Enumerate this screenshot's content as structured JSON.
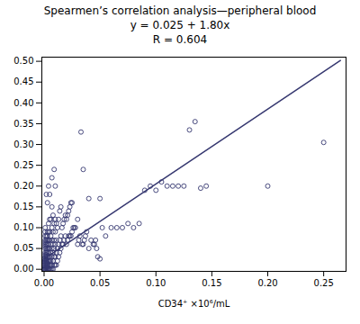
{
  "chart_data": {
    "type": "scatter",
    "title": "Spearmen’s correlation analysis—peripheral blood\ny = 0.025 + 1.80x\nR = 0.604",
    "xlabel": "CD34⁺ ×10⁶/mL",
    "xlim": [
      -0.002,
      0.27
    ],
    "ylim": [
      -0.005,
      0.51
    ],
    "xticks": [
      {
        "value": 0.0,
        "label": "0.00"
      },
      0.05,
      {
        "value": 0.1,
        "label": "0.10"
      },
      0.15,
      {
        "value": 0.2,
        "label": "0.20"
      },
      0.25
    ],
    "yticks": [
      {
        "value": 0.0,
        "label": "0.00"
      },
      0.05,
      {
        "value": 0.1,
        "label": "0.10"
      },
      0.15,
      {
        "value": 0.2,
        "label": "0.20"
      },
      0.25,
      {
        "value": 0.3,
        "label": "0.30"
      },
      0.35,
      {
        "value": 0.4,
        "label": "0.40"
      },
      0.45,
      {
        "value": 0.5,
        "label": "0.50"
      }
    ],
    "grid": false,
    "series": [
      {
        "type": "scatter",
        "color": "#363870",
        "marker": "circle",
        "x": [
          0.0,
          0.0,
          0.0,
          0.0,
          0.0,
          0.0,
          0.0,
          0.0,
          0.001,
          0.001,
          0.001,
          0.001,
          0.001,
          0.001,
          0.001,
          0.001,
          0.001,
          0.001,
          0.001,
          0.001,
          0.001,
          0.001,
          0.001,
          0.001,
          0.001,
          0.001,
          0.002,
          0.002,
          0.002,
          0.002,
          0.002,
          0.002,
          0.002,
          0.002,
          0.002,
          0.002,
          0.002,
          0.002,
          0.002,
          0.002,
          0.003,
          0.003,
          0.003,
          0.003,
          0.003,
          0.003,
          0.003,
          0.003,
          0.003,
          0.003,
          0.003,
          0.003,
          0.003,
          0.004,
          0.004,
          0.004,
          0.004,
          0.004,
          0.004,
          0.004,
          0.004,
          0.004,
          0.004,
          0.004,
          0.005,
          0.005,
          0.005,
          0.005,
          0.005,
          0.005,
          0.005,
          0.005,
          0.005,
          0.006,
          0.006,
          0.006,
          0.006,
          0.006,
          0.006,
          0.006,
          0.007,
          0.007,
          0.007,
          0.007,
          0.007,
          0.007,
          0.007,
          0.007,
          0.008,
          0.008,
          0.008,
          0.008,
          0.008,
          0.008,
          0.009,
          0.009,
          0.009,
          0.009,
          0.009,
          0.009,
          0.01,
          0.01,
          0.01,
          0.01,
          0.01,
          0.01,
          0.011,
          0.011,
          0.011,
          0.011,
          0.012,
          0.012,
          0.012,
          0.013,
          0.013,
          0.013,
          0.014,
          0.014,
          0.014,
          0.015,
          0.015,
          0.015,
          0.016,
          0.016,
          0.017,
          0.017,
          0.018,
          0.018,
          0.019,
          0.019,
          0.02,
          0.02,
          0.021,
          0.021,
          0.022,
          0.022,
          0.023,
          0.023,
          0.024,
          0.024,
          0.025,
          0.025,
          0.026,
          0.027,
          0.028,
          0.03,
          0.03,
          0.031,
          0.032,
          0.033,
          0.034,
          0.035,
          0.035,
          0.036,
          0.037,
          0.038,
          0.04,
          0.04,
          0.042,
          0.044,
          0.045,
          0.046,
          0.047,
          0.048,
          0.05,
          0.05,
          0.052,
          0.055,
          0.06,
          0.065,
          0.07,
          0.075,
          0.08,
          0.085,
          0.09,
          0.095,
          0.1,
          0.105,
          0.11,
          0.115,
          0.12,
          0.125,
          0.13,
          0.135,
          0.14,
          0.145,
          0.2,
          0.25
        ],
        "values": [
          0.0,
          0.0,
          0.0,
          0.005,
          0.01,
          0.015,
          0.02,
          0.025,
          0.0,
          0.0,
          0.005,
          0.01,
          0.015,
          0.02,
          0.025,
          0.03,
          0.035,
          0.04,
          0.05,
          0.055,
          0.06,
          0.065,
          0.07,
          0.08,
          0.09,
          0.1,
          0.0,
          0.005,
          0.01,
          0.015,
          0.02,
          0.025,
          0.03,
          0.035,
          0.04,
          0.05,
          0.06,
          0.07,
          0.08,
          0.18,
          0.0,
          0.005,
          0.01,
          0.015,
          0.02,
          0.03,
          0.04,
          0.05,
          0.06,
          0.07,
          0.08,
          0.09,
          0.16,
          0.0,
          0.01,
          0.02,
          0.03,
          0.04,
          0.05,
          0.06,
          0.07,
          0.09,
          0.11,
          0.2,
          0.0,
          0.01,
          0.02,
          0.03,
          0.05,
          0.07,
          0.09,
          0.12,
          0.18,
          0.0,
          0.01,
          0.02,
          0.04,
          0.06,
          0.08,
          0.12,
          0.0,
          0.01,
          0.03,
          0.05,
          0.07,
          0.1,
          0.15,
          0.22,
          0.0,
          0.02,
          0.04,
          0.06,
          0.09,
          0.13,
          0.01,
          0.03,
          0.05,
          0.07,
          0.11,
          0.24,
          0.01,
          0.03,
          0.06,
          0.09,
          0.12,
          0.2,
          0.01,
          0.04,
          0.07,
          0.11,
          0.02,
          0.05,
          0.1,
          0.03,
          0.06,
          0.12,
          0.04,
          0.07,
          0.14,
          0.05,
          0.08,
          0.15,
          0.06,
          0.1,
          0.06,
          0.11,
          0.07,
          0.12,
          0.08,
          0.13,
          0.06,
          0.12,
          0.07,
          0.13,
          0.08,
          0.14,
          0.08,
          0.15,
          0.08,
          0.16,
          0.09,
          0.16,
          0.1,
          0.1,
          0.1,
          0.06,
          0.12,
          0.07,
          0.08,
          0.33,
          0.06,
          0.06,
          0.24,
          0.07,
          0.08,
          0.09,
          0.05,
          0.17,
          0.07,
          0.06,
          0.06,
          0.07,
          0.05,
          0.03,
          0.025,
          0.17,
          0.1,
          0.08,
          0.1,
          0.1,
          0.1,
          0.11,
          0.1,
          0.11,
          0.19,
          0.2,
          0.19,
          0.21,
          0.2,
          0.2,
          0.2,
          0.2,
          0.335,
          0.355,
          0.195,
          0.2,
          0.2,
          0.305
        ]
      },
      {
        "type": "line",
        "color": "#363870",
        "line_style": "solid",
        "x": [
          0.0,
          0.265
        ],
        "values": [
          0.025,
          0.502
        ]
      }
    ]
  }
}
